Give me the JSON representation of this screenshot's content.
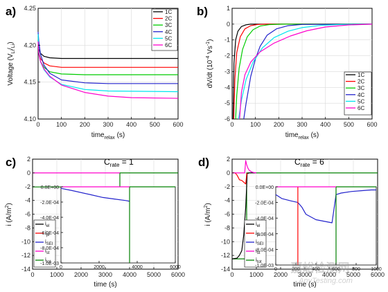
{
  "chart_data": [
    {
      "panel": "a)",
      "type": "line",
      "xlabel": "time",
      "xlabel_sub": "relax",
      "xlabel_unit": " (s)",
      "ylabel": "Voltage (V",
      "ylabel_sub": "Li",
      "ylabel_slash": "/",
      "ylabel_sub2": "Li",
      "ylabel_end": ")",
      "xlim": [
        0,
        600
      ],
      "ylim": [
        4.1,
        4.25
      ],
      "xticks": [
        "0",
        "100",
        "200",
        "300",
        "400",
        "500",
        "600"
      ],
      "yticks": [
        "4.10",
        "4.15",
        "4.20",
        "4.25"
      ],
      "legend_position": "top-right",
      "series": [
        {
          "name": "1C",
          "color": "#000000",
          "x": [
            0,
            3,
            10,
            25,
            50,
            100,
            200,
            600
          ],
          "y": [
            4.207,
            4.195,
            4.189,
            4.185,
            4.183,
            4.182,
            4.182,
            4.182
          ]
        },
        {
          "name": "2C",
          "color": "#ff0000",
          "x": [
            0,
            3,
            10,
            25,
            50,
            100,
            200,
            600
          ],
          "y": [
            4.205,
            4.19,
            4.182,
            4.176,
            4.172,
            4.17,
            4.17,
            4.17
          ]
        },
        {
          "name": "3C",
          "color": "#00cc00",
          "x": [
            0,
            3,
            10,
            25,
            50,
            100,
            200,
            600
          ],
          "y": [
            4.212,
            4.19,
            4.178,
            4.17,
            4.164,
            4.161,
            4.16,
            4.16
          ]
        },
        {
          "name": "4C",
          "color": "#2222cc",
          "x": [
            0,
            3,
            10,
            25,
            50,
            100,
            200,
            300,
            600
          ],
          "y": [
            4.218,
            4.205,
            4.188,
            4.173,
            4.162,
            4.153,
            4.149,
            4.148,
            4.148
          ]
        },
        {
          "name": "5C",
          "color": "#00e5ee",
          "x": [
            0,
            3,
            10,
            25,
            50,
            100,
            200,
            300,
            600
          ],
          "y": [
            4.215,
            4.19,
            4.178,
            4.167,
            4.157,
            4.147,
            4.14,
            4.138,
            4.137
          ]
        },
        {
          "name": "6C",
          "color": "#ff00cc",
          "x": [
            0,
            3,
            10,
            25,
            50,
            100,
            200,
            300,
            400,
            600
          ],
          "y": [
            4.205,
            4.188,
            4.178,
            4.168,
            4.158,
            4.146,
            4.136,
            4.131,
            4.129,
            4.128
          ]
        }
      ]
    },
    {
      "panel": "b)",
      "type": "line",
      "xlabel": "time",
      "xlabel_sub": "relax",
      "xlabel_unit": " (s)",
      "ylabel": "dV/dt (10",
      "ylabel_sup": "-4",
      "ylabel_mid": " Vs",
      "ylabel_sup2": "-1",
      "ylabel_end": ")",
      "xlim": [
        0,
        600
      ],
      "ylim": [
        -6,
        1
      ],
      "xticks": [
        "0",
        "100",
        "200",
        "300",
        "400",
        "500",
        "600"
      ],
      "yticks": [
        "1",
        "0",
        "-1",
        "-2",
        "-3",
        "-4",
        "-5",
        "-6"
      ],
      "legend_position": "bottom-right",
      "series": [
        {
          "name": "1C",
          "color": "#000000",
          "x": [
            4,
            8,
            15,
            25,
            40,
            60,
            80,
            600
          ],
          "y": [
            -6,
            -2.5,
            -1.0,
            -0.45,
            -0.15,
            -0.04,
            0,
            0
          ]
        },
        {
          "name": "2C",
          "color": "#ff0000",
          "x": [
            7,
            12,
            20,
            35,
            55,
            80,
            110,
            150,
            600
          ],
          "y": [
            -6,
            -3.5,
            -1.8,
            -0.8,
            -0.3,
            -0.1,
            -0.02,
            0,
            0
          ]
        },
        {
          "name": "3C",
          "color": "#00cc00",
          "x": [
            15,
            20,
            30,
            45,
            65,
            90,
            120,
            160,
            220,
            600
          ],
          "y": [
            -6,
            -4.5,
            -2.8,
            -1.6,
            -0.8,
            -0.35,
            -0.12,
            -0.03,
            0,
            0
          ]
        },
        {
          "name": "4C",
          "color": "#2222cc",
          "x": [
            50,
            60,
            80,
            100,
            120,
            150,
            190,
            240,
            300,
            600
          ],
          "y": [
            -6,
            -5.0,
            -3.3,
            -2.2,
            -1.4,
            -0.7,
            -0.3,
            -0.1,
            -0.02,
            0
          ]
        },
        {
          "name": "5C",
          "color": "#00e5ee",
          "x": [
            28,
            40,
            60,
            90,
            130,
            180,
            240,
            300,
            380,
            470,
            600
          ],
          "y": [
            -6,
            -4.8,
            -3.5,
            -2.4,
            -1.5,
            -0.85,
            -0.45,
            -0.22,
            -0.08,
            -0.02,
            0
          ]
        },
        {
          "name": "6C",
          "color": "#ff00cc",
          "x": [
            32,
            40,
            55,
            80,
            120,
            180,
            250,
            320,
            400,
            500,
            600
          ],
          "y": [
            -6,
            -4.3,
            -3.2,
            -2.4,
            -1.75,
            -1.2,
            -0.75,
            -0.42,
            -0.18,
            -0.05,
            0
          ]
        }
      ]
    },
    {
      "panel": "c)",
      "type": "line",
      "annotation": "C",
      "annotation_sub": "rate",
      "annotation_value": " = 1",
      "xlabel": "time (s)",
      "ylabel": "i (A/m",
      "ylabel_sup": "2",
      "ylabel_end": ")",
      "xlim": [
        0,
        6000
      ],
      "ylim": [
        -14,
        2
      ],
      "xticks": [
        "0",
        "1000",
        "2000",
        "3000",
        "4000",
        "5000",
        "6000"
      ],
      "yticks": [
        "2",
        "0",
        "-2",
        "-4",
        "-6",
        "-8",
        "-10",
        "-12",
        "-14"
      ],
      "legend": [
        {
          "main": "i",
          "sub": "el",
          "color": "#000000"
        },
        {
          "main": "i",
          "sub": "pl",
          "color": "#ff0000"
        },
        {
          "main": "i",
          "sub": "SEI",
          "color": "#2222cc"
        },
        {
          "main": "i",
          "sub": "st",
          "color": "#ff00cc"
        },
        {
          "main": "i",
          "sub": "tot",
          "color": "#008000"
        }
      ],
      "series": [
        {
          "name": "tot",
          "color": "#008000",
          "x": [
            0,
            3600,
            3600,
            6000
          ],
          "y": [
            -2.05,
            -2.05,
            0,
            0
          ]
        },
        {
          "name": "st",
          "color": "#ff00cc",
          "x": [
            0,
            3600
          ],
          "y": [
            0,
            0
          ]
        }
      ],
      "inset": {
        "xlim": [
          0,
          6000
        ],
        "ylim": [
          -0.001,
          0
        ],
        "xticks": [
          "0",
          "2000",
          "4000",
          "6000"
        ],
        "yticks": [
          "0.0E+00",
          "-2.0E-04",
          "-4.0E-04",
          "-6.0E-04",
          "-8.0E-04",
          "-1.0E-03"
        ],
        "series": [
          {
            "name": "SEI",
            "color": "#2222cc",
            "x": [
              0,
              600,
              1500,
              2200,
              2800,
              3400,
              3600
            ],
            "y": [
              -2e-05,
              -5e-05,
              -0.0001,
              -0.00014,
              -0.00016,
              -0.00018,
              -0.00019
            ]
          },
          {
            "name": "tot",
            "color": "#008000",
            "x": [
              3600,
              3600,
              6000
            ],
            "y": [
              -0.001,
              0,
              0
            ]
          },
          {
            "name": "st",
            "color": "#ff00cc",
            "x": [
              0,
              3600
            ],
            "y": [
              0,
              0
            ]
          }
        ]
      }
    },
    {
      "panel": "d)",
      "type": "line",
      "annotation": "C",
      "annotation_sub": "rate",
      "annotation_value": " = 6",
      "xlabel": "time (s)",
      "ylabel": "i (A/m",
      "ylabel_sup": "2",
      "ylabel_end": ")",
      "xlim": [
        0,
        6000
      ],
      "ylim": [
        -14,
        2
      ],
      "xticks": [
        "0",
        "1000",
        "2000",
        "3000",
        "4000",
        "5000",
        "6000"
      ],
      "yticks": [
        "2",
        "0",
        "-2",
        "-4",
        "-6",
        "-8",
        "-10",
        "-12",
        "-14"
      ],
      "legend": [
        {
          "main": "i",
          "sub": "el",
          "color": "#000000"
        },
        {
          "main": "i",
          "sub": "pl",
          "color": "#ff0000"
        },
        {
          "main": "i",
          "sub": "SEI",
          "color": "#2222cc"
        },
        {
          "main": "i",
          "sub": "st",
          "color": "#ff00cc"
        },
        {
          "main": "i",
          "sub": "tot",
          "color": "#008000"
        }
      ],
      "series": [
        {
          "name": "tot",
          "color": "#008000",
          "x": [
            0,
            600,
            600,
            6000
          ],
          "y": [
            -12.5,
            -12.5,
            0,
            0
          ]
        },
        {
          "name": "el",
          "color": "#000000",
          "x": [
            0,
            200,
            300,
            400,
            480,
            560,
            600,
            620,
            700,
            800,
            900,
            1000
          ],
          "y": [
            -12.5,
            -12.4,
            -12.0,
            -11.3,
            -9.0,
            -5.0,
            -2.0,
            -0.1,
            0,
            0,
            0,
            0
          ]
        },
        {
          "name": "pl",
          "color": "#ff0000",
          "x": [
            0,
            120,
            200,
            260,
            300,
            400,
            560,
            600,
            620
          ],
          "y": [
            0,
            0,
            -0.3,
            -0.7,
            -1.0,
            -1.1,
            -1.6,
            -0.3,
            0
          ]
        },
        {
          "name": "st",
          "color": "#ff00cc",
          "x": [
            0,
            520,
            560,
            600,
            650,
            700,
            800,
            900,
            1000
          ],
          "y": [
            0,
            0,
            1.8,
            1.2,
            0.7,
            0.4,
            0.15,
            0.05,
            0
          ]
        }
      ],
      "inset": {
        "xlim": [
          0,
          1000
        ],
        "ylim": [
          -0.001,
          0
        ],
        "xticks": [
          "0",
          "200",
          "400",
          "600",
          "800",
          "1000"
        ],
        "yticks": [
          "0.0E+00",
          "-2.0E-04",
          "-4.0E-04",
          "-6.0E-04",
          "-8.0E-04",
          "-1.0E-03"
        ],
        "series": [
          {
            "name": "SEI",
            "color": "#2222cc",
            "x": [
              0,
              60,
              150,
              220,
              260,
              300,
              400,
              560,
              600,
              650,
              750,
              850,
              950,
              1000
            ],
            "y": [
              -0.0001,
              -0.00015,
              -0.00018,
              -0.0002,
              -0.00026,
              -0.00035,
              -0.00042,
              -0.00046,
              -0.0001,
              -8e-05,
              -6e-05,
              -5e-05,
              -4e-05,
              -4e-05
            ]
          },
          {
            "name": "pl",
            "color": "#ff0000",
            "x": [
              220,
              220
            ],
            "y": [
              -0.001,
              0
            ]
          },
          {
            "name": "tot",
            "color": "#008000",
            "x": [
              600,
              600,
              1000
            ],
            "y": [
              -0.001,
              0,
              0
            ]
          },
          {
            "name": "st",
            "color": "#ff00cc",
            "x": [
              0,
              600
            ],
            "y": [
              0,
              0
            ]
          }
        ]
      }
    }
  ],
  "watermark": {
    "main": "嘉峪检测网",
    "sub": "AnyTesting.com"
  }
}
